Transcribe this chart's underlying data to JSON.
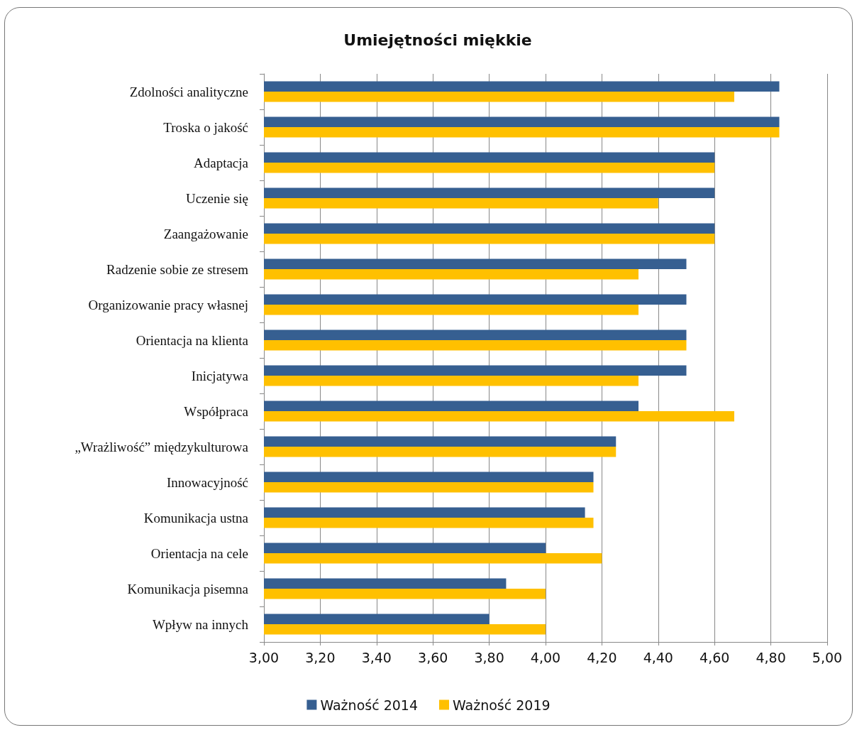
{
  "chart_data": {
    "type": "bar",
    "orientation": "horizontal",
    "title": "Umiejętności miękkie",
    "categories": [
      "Zdolności analityczne",
      "Troska o jakość",
      "Adaptacja",
      "Uczenie się",
      "Zaangażowanie",
      "Radzenie sobie ze stresem",
      "Organizowanie pracy własnej",
      "Orientacja na klienta",
      "Inicjatywa",
      "Współpraca",
      "„Wrażliwość” międzykulturowa",
      "Innowacyjność",
      "Komunikacja ustna",
      "Orientacja na cele",
      "Komunikacja pisemna",
      "Wpływ na innych"
    ],
    "series": [
      {
        "name": "Ważność 2014",
        "color": "#365f91",
        "values": [
          4.83,
          4.83,
          4.6,
          4.6,
          4.6,
          4.5,
          4.5,
          4.5,
          4.5,
          4.33,
          4.25,
          4.17,
          4.14,
          4.0,
          3.86,
          3.8
        ]
      },
      {
        "name": "Ważność 2019",
        "color": "#ffc000",
        "values": [
          4.67,
          4.83,
          4.6,
          4.4,
          4.6,
          4.33,
          4.33,
          4.5,
          4.33,
          4.67,
          4.25,
          4.17,
          4.17,
          4.2,
          4.0,
          4.0
        ]
      }
    ],
    "xlim": [
      3,
      5
    ],
    "xticks": [
      {
        "value": 3,
        "label": "3,00"
      },
      {
        "value": 3.2,
        "label": "3,20"
      },
      {
        "value": 3.4,
        "label": "3,40"
      },
      {
        "value": 3.6,
        "label": "3,60"
      },
      {
        "value": 3.8,
        "label": "3,80"
      },
      {
        "value": 4,
        "label": "4,00"
      },
      {
        "value": 4.2,
        "label": "4,20"
      },
      {
        "value": 4.4,
        "label": "4,40"
      },
      {
        "value": 4.6,
        "label": "4,60"
      },
      {
        "value": 4.8,
        "label": "4,80"
      },
      {
        "value": 5,
        "label": "5,00"
      }
    ],
    "grid": "x",
    "legend": "bottom"
  }
}
